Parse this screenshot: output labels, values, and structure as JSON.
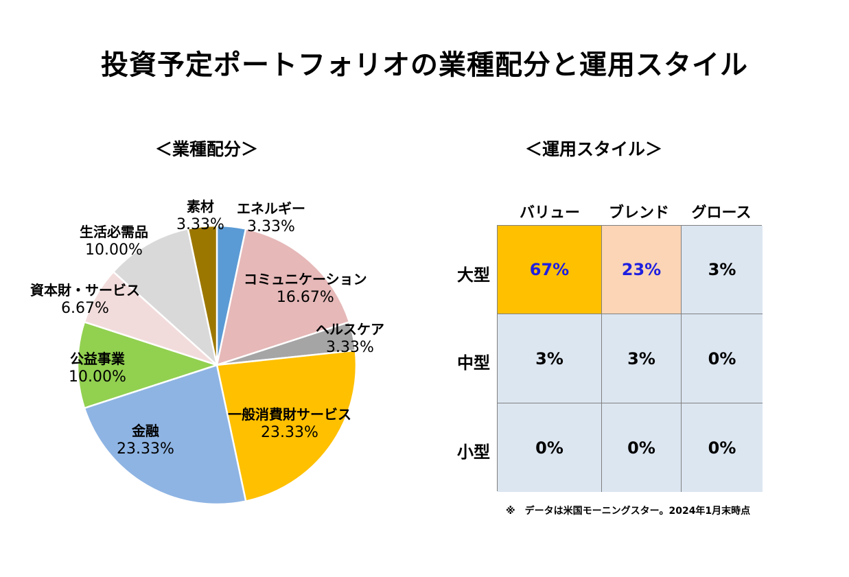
{
  "title": "投資予定ポートフォリオの業種配分と運用スタイル",
  "sector_section_title": "＜業種配分＞",
  "style_section_title": "＜運用スタイル＞",
  "chart_data": [
    {
      "type": "pie",
      "slices": [
        {
          "label": "エネルギー",
          "display": "3.33%",
          "value": 3.33,
          "color": "#5b9bd5"
        },
        {
          "label": "コミュニケーション",
          "display": "16.67%",
          "value": 16.67,
          "color": "#e6b8b8"
        },
        {
          "label": "ヘルスケア",
          "display": "3.33%",
          "value": 3.33,
          "color": "#a5a5a5"
        },
        {
          "label": "一般消費財サービス",
          "display": "23.33%",
          "value": 23.33,
          "color": "#ffc000"
        },
        {
          "label": "金融",
          "display": "23.33%",
          "value": 23.33,
          "color": "#8eb4e3"
        },
        {
          "label": "公益事業",
          "display": "10.00%",
          "value": 10.0,
          "color": "#92d050"
        },
        {
          "label": "資本財・サービス",
          "display": "6.67%",
          "value": 6.67,
          "color": "#f2dcdb"
        },
        {
          "label": "生活必需品",
          "display": "10.00%",
          "value": 10.0,
          "color": "#d9d9d9"
        },
        {
          "label": "素材",
          "display": "3.33%",
          "value": 3.33,
          "color": "#9c7700"
        }
      ]
    },
    {
      "type": "table",
      "columns": [
        "バリュー",
        "ブレンド",
        "グロース"
      ],
      "rows": [
        {
          "label": "大型",
          "cells": [
            {
              "text": "67%",
              "bg": "#ffc000",
              "color": "#1f1fe0"
            },
            {
              "text": "23%",
              "bg": "#fbd5b5",
              "color": "#1f1fe0"
            },
            {
              "text": "3%",
              "bg": "#dce6f1",
              "color": "#000000"
            }
          ]
        },
        {
          "label": "中型",
          "cells": [
            {
              "text": "3%",
              "bg": "#dce6f1",
              "color": "#000000"
            },
            {
              "text": "3%",
              "bg": "#dce6f1",
              "color": "#000000"
            },
            {
              "text": "0%",
              "bg": "#dce6f1",
              "color": "#000000"
            }
          ]
        },
        {
          "label": "小型",
          "cells": [
            {
              "text": "0%",
              "bg": "#dce6f1",
              "color": "#000000"
            },
            {
              "text": "0%",
              "bg": "#dce6f1",
              "color": "#000000"
            },
            {
              "text": "0%",
              "bg": "#dce6f1",
              "color": "#000000"
            }
          ]
        }
      ]
    }
  ],
  "note": "※　データは米国モーニングスター。2024年1月末時点"
}
